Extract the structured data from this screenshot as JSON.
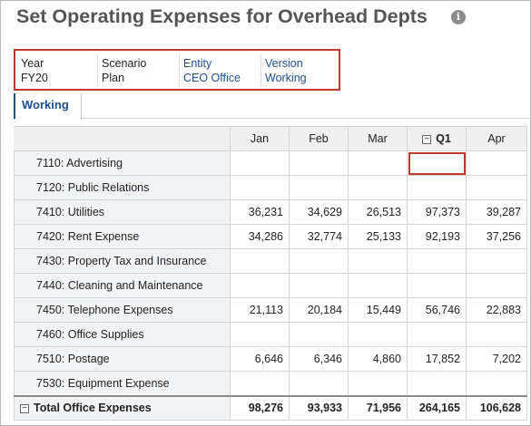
{
  "page": {
    "title": "Set Operating Expenses for Overhead Depts"
  },
  "icons": {
    "info": "info-icon",
    "collapse": "collapse-icon"
  },
  "pov": [
    {
      "label": "Year",
      "value": "FY20",
      "link": false
    },
    {
      "label": "Scenario",
      "value": "Plan",
      "link": false
    },
    {
      "label": "Entity",
      "value": "CEO Office",
      "link": true
    },
    {
      "label": "Version",
      "value": "Working",
      "link": true
    }
  ],
  "tabs": {
    "active": "Working"
  },
  "grid": {
    "columns": [
      "Jan",
      "Feb",
      "Mar",
      "Q1",
      "Apr"
    ],
    "rows": [
      {
        "label": "7110: Advertising",
        "values": [
          "",
          "",
          "",
          "",
          ""
        ]
      },
      {
        "label": "7120: Public Relations",
        "values": [
          "",
          "",
          "",
          "",
          ""
        ]
      },
      {
        "label": "7410: Utilities",
        "values": [
          "36,231",
          "34,629",
          "26,513",
          "97,373",
          "39,287"
        ]
      },
      {
        "label": "7420: Rent Expense",
        "values": [
          "34,286",
          "32,774",
          "25,133",
          "92,193",
          "37,256"
        ]
      },
      {
        "label": "7430: Property Tax and Insurance",
        "values": [
          "",
          "",
          "",
          "",
          ""
        ]
      },
      {
        "label": "7440: Cleaning and Maintenance",
        "values": [
          "",
          "",
          "",
          "",
          ""
        ]
      },
      {
        "label": "7450: Telephone Expenses",
        "values": [
          "21,113",
          "20,184",
          "15,449",
          "56,746",
          "22,883"
        ]
      },
      {
        "label": "7460: Office Supplies",
        "values": [
          "",
          "",
          "",
          "",
          ""
        ]
      },
      {
        "label": "7510: Postage",
        "values": [
          "6,646",
          "6,346",
          "4,860",
          "17,852",
          "7,202"
        ]
      },
      {
        "label": "7530: Equipment Expense",
        "values": [
          "",
          "",
          "",
          "",
          ""
        ]
      }
    ],
    "total": {
      "label": "Total Office Expenses",
      "values": [
        "98,276",
        "93,933",
        "71,956",
        "264,165",
        "106,628"
      ]
    }
  }
}
